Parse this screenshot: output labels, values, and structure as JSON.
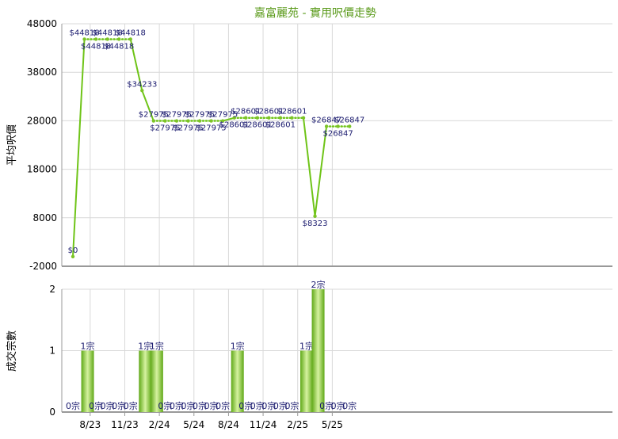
{
  "colors": {
    "line": "#6fc418",
    "marker": "#7cc426",
    "grid": "#d9d9d9",
    "title": "#5a9a1a",
    "bar_dark": "#5fa817",
    "bar_light": "#d6f2a0",
    "label": "#1a1a6e",
    "axis": "#999999"
  },
  "chart_data": [
    {
      "type": "line",
      "title": "嘉富麗苑 - 實用呎價走勢",
      "ylabel": "平均呎價",
      "ylim": [
        -2000,
        48000
      ],
      "yticks": [
        -2000,
        8000,
        18000,
        28000,
        38000,
        48000
      ],
      "grid": true,
      "xticks": [
        "8/23",
        "11/23",
        "2/24",
        "5/24",
        "8/24",
        "11/24",
        "2/25",
        "5/25"
      ],
      "x": [
        0,
        1,
        2,
        3,
        4,
        5,
        6,
        7,
        8,
        9,
        10,
        11,
        12,
        13,
        14,
        15,
        16,
        17,
        18,
        19,
        20,
        21,
        22,
        23,
        24
      ],
      "values": [
        0,
        44818,
        44818,
        44818,
        44818,
        44818,
        34233,
        27975,
        27975,
        27975,
        27975,
        27975,
        27975,
        27975,
        28601,
        28601,
        28601,
        28601,
        28601,
        28601,
        28601,
        8323,
        26847,
        26847,
        26847
      ],
      "data_labels": [
        {
          "text": "$0",
          "pos": "above"
        },
        {
          "text": "$44818",
          "pos": "above"
        },
        {
          "text": "$44818",
          "pos": "below"
        },
        {
          "text": "$44818",
          "pos": "above"
        },
        {
          "text": "$44818",
          "pos": "below"
        },
        {
          "text": "$44818",
          "pos": "above"
        },
        {
          "text": "$34233",
          "pos": "above"
        },
        {
          "text": "$27975",
          "pos": "above"
        },
        {
          "text": "$27975",
          "pos": "below"
        },
        {
          "text": "$27975",
          "pos": "above"
        },
        {
          "text": "$27975",
          "pos": "below"
        },
        {
          "text": "$27975",
          "pos": "above"
        },
        {
          "text": "$27975",
          "pos": "below"
        },
        {
          "text": "$27975",
          "pos": "above"
        },
        {
          "text": "$28601",
          "pos": "below"
        },
        {
          "text": "$28601",
          "pos": "above"
        },
        {
          "text": "$28601",
          "pos": "below"
        },
        {
          "text": "$28601",
          "pos": "above"
        },
        {
          "text": "$28601",
          "pos": "below"
        },
        {
          "text": "$28601",
          "pos": "above"
        },
        null,
        {
          "text": "$8323",
          "pos": "below"
        },
        {
          "text": "$26847",
          "pos": "above"
        },
        {
          "text": "$26847",
          "pos": "below"
        },
        {
          "text": "$26847",
          "pos": "above"
        }
      ]
    },
    {
      "type": "bar",
      "ylabel": "成交宗數",
      "ylim": [
        0,
        2
      ],
      "yticks": [
        0,
        1,
        2
      ],
      "grid": true,
      "xticks": [
        "8/23",
        "11/23",
        "2/24",
        "5/24",
        "8/24",
        "11/24",
        "2/25",
        "5/25"
      ],
      "x": [
        0,
        1,
        2,
        3,
        4,
        5,
        6,
        7,
        8,
        9,
        10,
        11,
        12,
        13,
        14,
        15,
        16,
        17,
        18,
        19,
        20,
        21,
        22,
        23,
        24
      ],
      "values": [
        0,
        1,
        0,
        0,
        0,
        0,
        1,
        1,
        0,
        0,
        0,
        0,
        0,
        0,
        1,
        0,
        0,
        0,
        0,
        0,
        1,
        2,
        0,
        0,
        0
      ],
      "labels": [
        "0宗",
        "1宗",
        "0宗",
        "0宗",
        "0宗",
        "0宗",
        "1宗",
        "1宗",
        "0宗",
        "0宗",
        "0宗",
        "0宗",
        "0宗",
        "0宗",
        "1宗",
        "0宗",
        "0宗",
        "0宗",
        "0宗",
        "0宗",
        "1宗",
        "2宗",
        "0宗",
        "0宗",
        "0宗"
      ]
    }
  ]
}
